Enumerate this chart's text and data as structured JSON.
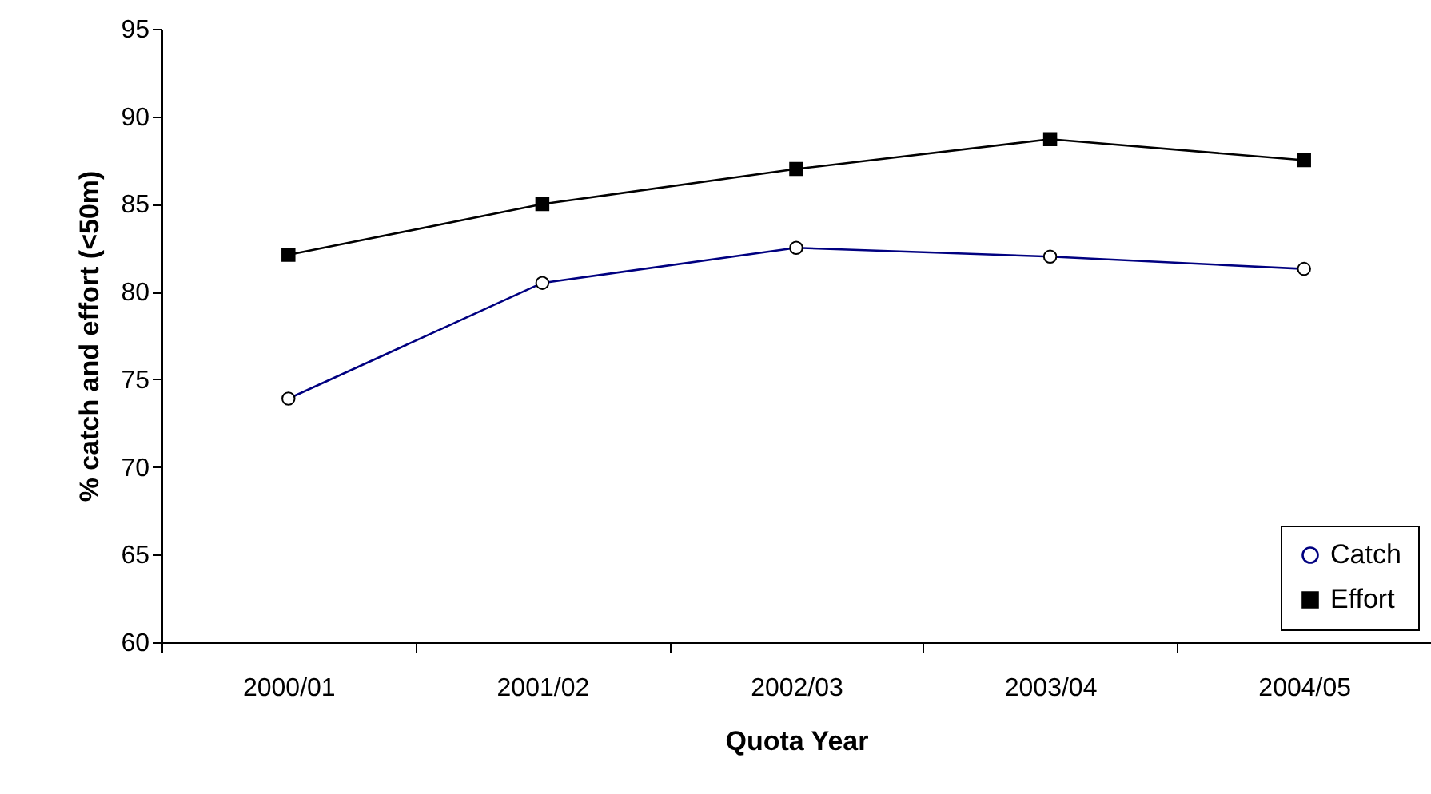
{
  "chart_data": {
    "type": "line",
    "xlabel": "Quota Year",
    "ylabel": "% catch and effort (<50m)",
    "categories": [
      "2000/01",
      "2001/02",
      "2002/03",
      "2003/04",
      "2004/05"
    ],
    "series": [
      {
        "name": "Catch",
        "color": "#000080",
        "marker": "circle",
        "values": [
          73.9,
          80.5,
          82.5,
          82.0,
          81.3
        ]
      },
      {
        "name": "Effort",
        "color": "#000000",
        "marker": "square",
        "values": [
          82.1,
          85.0,
          87.0,
          88.7,
          87.5
        ]
      }
    ],
    "ylim": [
      60,
      95
    ],
    "yticks": [
      60,
      65,
      70,
      75,
      80,
      85,
      90,
      95
    ],
    "grid": false,
    "legend": "bottom right"
  }
}
